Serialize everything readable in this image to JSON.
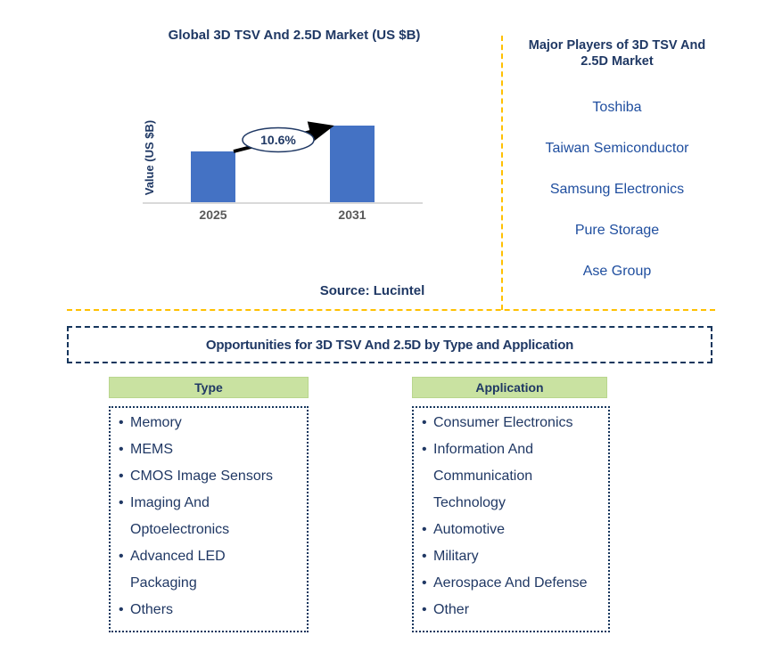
{
  "chart": {
    "title": "Global 3D TSV And 2.5D Market (US $B)",
    "source": "Source: Lucintel"
  },
  "chart_data": {
    "type": "bar",
    "title": "Global 3D TSV And 2.5D Market (US $B)",
    "categories": [
      "2025",
      "2031"
    ],
    "values": [
      1.0,
      1.5
    ],
    "values_note": "y-axis has no tick values; values are relative bar heights",
    "ylabel": "Value (US $B)",
    "xlabel": "",
    "annotation": "10.6%",
    "annotation_context": "growth arrow from 2025 bar to 2031 bar",
    "bar_color": "#4472C4",
    "grid": false,
    "legend": false
  },
  "players": {
    "title": "Major Players of 3D TSV And 2.5D Market",
    "names": [
      "Toshiba",
      "Taiwan Semiconductor",
      "Samsung Electronics",
      "Pure Storage",
      "Ase Group"
    ]
  },
  "opportunities": {
    "title": "Opportunities for 3D TSV And 2.5D by Type and Application",
    "type": {
      "header": "Type",
      "items": [
        "Memory",
        "MEMS",
        "CMOS Image Sensors",
        "Imaging And Optoelectronics",
        "Advanced LED Packaging",
        "Others"
      ]
    },
    "application": {
      "header": "Application",
      "items": [
        "Consumer Electronics",
        "Information And Communication Technology",
        "Automotive",
        "Military",
        "Aerospace And Defense",
        "Other"
      ]
    }
  },
  "colors": {
    "navy": "#1F3864",
    "player_blue": "#1F4E9F",
    "bar_blue": "#4472C4",
    "divider_gold": "#FFC000",
    "header_green": "#C9E2A1",
    "axis_gray": "#D9D9D9",
    "tick_gray": "#595959"
  }
}
